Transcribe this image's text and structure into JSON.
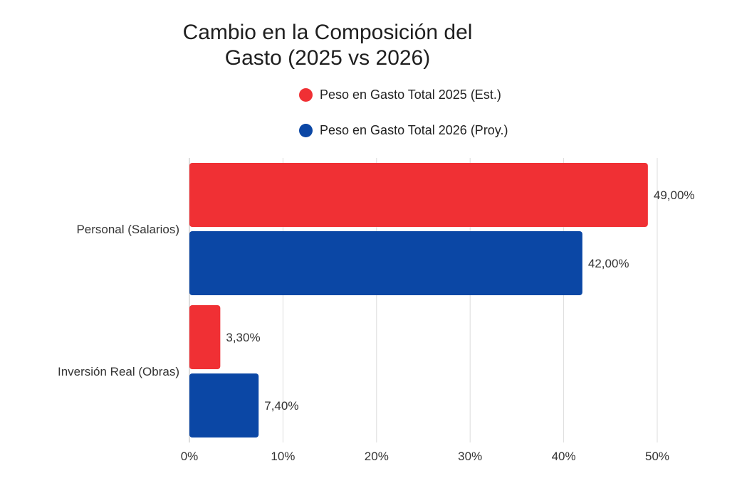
{
  "chart_data": {
    "type": "bar",
    "orientation": "horizontal",
    "title": "Cambio en la Composición del Gasto (2025 vs 2026)",
    "categories": [
      "Personal (Salarios)",
      "Inversión Real (Obras)"
    ],
    "series": [
      {
        "name": "Peso en Gasto Total 2025 (Est.)",
        "color": "#f03034",
        "values": [
          49.0,
          3.3
        ],
        "labels": [
          "49,00%",
          "3,30%"
        ]
      },
      {
        "name": "Peso en Gasto Total 2026 (Proy.)",
        "color": "#0b47a5",
        "values": [
          42.0,
          7.4
        ],
        "labels": [
          "42,00%",
          "7,40%"
        ]
      }
    ],
    "xlim": [
      0,
      50
    ],
    "xticks": [
      0,
      10,
      20,
      30,
      40,
      50
    ],
    "xtick_labels": [
      "0%",
      "10%",
      "20%",
      "30%",
      "40%",
      "50%"
    ],
    "grid": true,
    "legend_position": "top"
  }
}
